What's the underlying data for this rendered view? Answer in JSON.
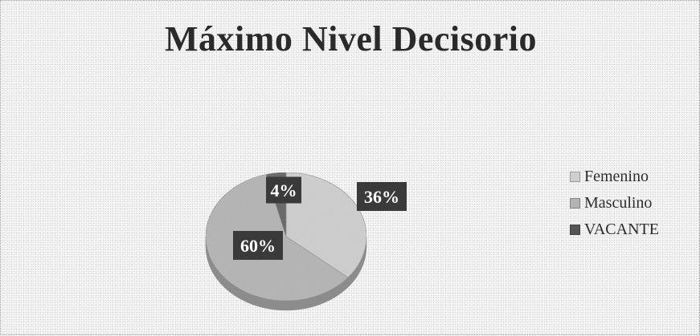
{
  "chart_data": {
    "type": "pie",
    "title": "Máximo Nivel Decisorio",
    "categories": [
      "Femenino",
      "Masculino",
      "VACANTE"
    ],
    "values": [
      36,
      60,
      4
    ],
    "data_labels": [
      "36%",
      "60%",
      "4%"
    ],
    "colors": [
      "#cfcfcf",
      "#b3b3b3",
      "#555555"
    ],
    "legend_position": "right",
    "style": "3d-pie"
  }
}
